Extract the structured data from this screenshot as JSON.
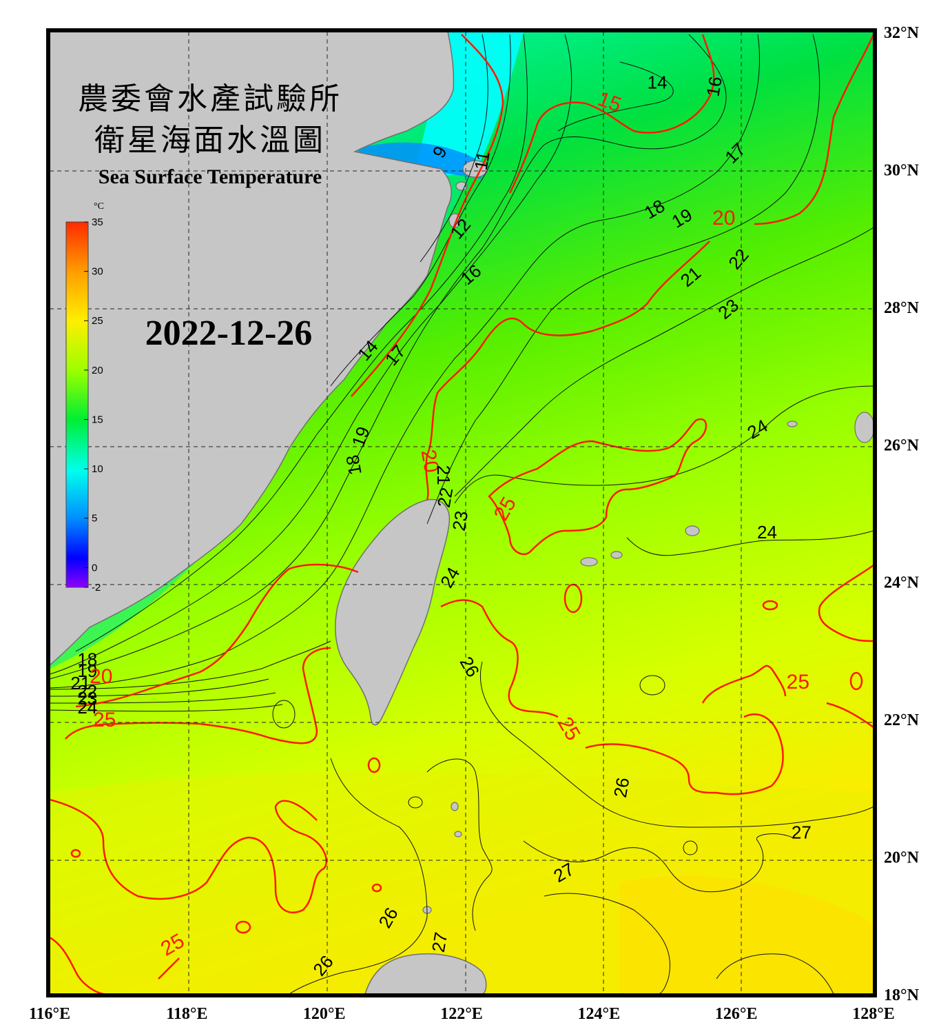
{
  "title_line1": "農委會水產試驗所",
  "title_line2": "衛星海面水溫圖",
  "subtitle": "Sea Surface Temperature",
  "date": "2022-12-26",
  "colorbar": {
    "unit": "°C",
    "ticks": [
      "35",
      "30",
      "25",
      "20",
      "15",
      "10",
      "5",
      "0",
      "-2"
    ],
    "colors": [
      "#ff2a00",
      "#ffa000",
      "#ffee00",
      "#99ff00",
      "#00ee33",
      "#00ffee",
      "#0090ff",
      "#0000ff",
      "#9000ff"
    ]
  },
  "axes": {
    "lon_labels": [
      "116°E",
      "118°E",
      "120°E",
      "122°E",
      "124°E",
      "126°E",
      "128°E"
    ],
    "lat_labels": [
      "32°N",
      "30°N",
      "28°N",
      "26°N",
      "24°N",
      "22°N",
      "20°N",
      "18°N"
    ]
  },
  "contour_labels": [
    {
      "text": "14",
      "lon": 124.85,
      "lat": 31.24,
      "color": "black",
      "rot": 0
    },
    {
      "text": "15",
      "lon": 124.15,
      "lat": 30.96,
      "color": "red",
      "rot": 20
    },
    {
      "text": "16",
      "lon": 125.7,
      "lat": 31.2,
      "color": "black",
      "rot": -80
    },
    {
      "text": "17",
      "lon": 126.0,
      "lat": 30.22,
      "color": "black",
      "rot": -45
    },
    {
      "text": "18",
      "lon": 124.82,
      "lat": 29.4,
      "color": "black",
      "rot": -30
    },
    {
      "text": "19",
      "lon": 125.22,
      "lat": 29.27,
      "color": "black",
      "rot": -30
    },
    {
      "text": "20",
      "lon": 125.82,
      "lat": 29.27,
      "color": "red",
      "rot": 0
    },
    {
      "text": "21",
      "lon": 125.35,
      "lat": 28.42,
      "color": "black",
      "rot": -40
    },
    {
      "text": "22",
      "lon": 126.05,
      "lat": 28.68,
      "color": "black",
      "rot": -50
    },
    {
      "text": "23",
      "lon": 125.9,
      "lat": 27.95,
      "color": "black",
      "rot": -40
    },
    {
      "text": "24",
      "lon": 126.32,
      "lat": 26.2,
      "color": "black",
      "rot": -30
    },
    {
      "text": "24",
      "lon": 126.45,
      "lat": 24.7,
      "color": "black",
      "rot": 0
    },
    {
      "text": "9",
      "lon": 121.7,
      "lat": 30.24,
      "color": "black",
      "rot": -60
    },
    {
      "text": "11",
      "lon": 122.32,
      "lat": 30.12,
      "color": "black",
      "rot": -80
    },
    {
      "text": "12",
      "lon": 122.0,
      "lat": 29.12,
      "color": "black",
      "rot": -50
    },
    {
      "text": "16",
      "lon": 122.15,
      "lat": 28.45,
      "color": "black",
      "rot": -40
    },
    {
      "text": "14",
      "lon": 120.65,
      "lat": 27.35,
      "color": "black",
      "rot": -50
    },
    {
      "text": "17",
      "lon": 121.05,
      "lat": 27.28,
      "color": "black",
      "rot": -50
    },
    {
      "text": "19",
      "lon": 120.55,
      "lat": 26.1,
      "color": "black",
      "rot": -70
    },
    {
      "text": "18",
      "lon": 120.45,
      "lat": 25.7,
      "color": "black",
      "rot": -100
    },
    {
      "text": "20",
      "lon": 121.52,
      "lat": 25.75,
      "color": "red",
      "rot": 80
    },
    {
      "text": "21",
      "lon": 121.72,
      "lat": 25.55,
      "color": "black",
      "rot": 90
    },
    {
      "text": "22",
      "lon": 121.78,
      "lat": 25.22,
      "color": "black",
      "rot": -80
    },
    {
      "text": "23",
      "lon": 122.0,
      "lat": 24.88,
      "color": "black",
      "rot": -80
    },
    {
      "text": "24",
      "lon": 121.85,
      "lat": 24.05,
      "color": "black",
      "rot": -60
    },
    {
      "text": "25",
      "lon": 122.65,
      "lat": 25.05,
      "color": "red",
      "rot": -60
    },
    {
      "text": "25",
      "lon": 116.8,
      "lat": 21.97,
      "color": "red",
      "rot": 0
    },
    {
      "text": "26",
      "lon": 122.1,
      "lat": 22.75,
      "color": "black",
      "rot": 60
    },
    {
      "text": "25",
      "lon": 123.55,
      "lat": 21.85,
      "color": "red",
      "rot": 60
    },
    {
      "text": "25",
      "lon": 126.9,
      "lat": 22.52,
      "color": "red",
      "rot": 0
    },
    {
      "text": "26",
      "lon": 124.35,
      "lat": 21.0,
      "color": "black",
      "rot": -80
    },
    {
      "text": "27",
      "lon": 126.95,
      "lat": 20.33,
      "color": "black",
      "rot": 0
    },
    {
      "text": "27",
      "lon": 123.5,
      "lat": 19.75,
      "color": "black",
      "rot": -30
    },
    {
      "text": "26",
      "lon": 120.95,
      "lat": 19.1,
      "color": "black",
      "rot": -60
    },
    {
      "text": "27",
      "lon": 121.7,
      "lat": 18.75,
      "color": "black",
      "rot": -80
    },
    {
      "text": "26",
      "lon": 120.0,
      "lat": 18.4,
      "color": "black",
      "rot": -50
    },
    {
      "text": "25",
      "lon": 117.8,
      "lat": 18.7,
      "color": "red",
      "rot": -30
    },
    {
      "text": "18",
      "lon": 116.55,
      "lat": 22.85,
      "color": "black",
      "rot": 0
    },
    {
      "text": "19",
      "lon": 116.55,
      "lat": 22.68,
      "color": "black",
      "rot": 0
    },
    {
      "text": "20",
      "lon": 116.75,
      "lat": 22.6,
      "color": "red",
      "rot": 0
    },
    {
      "text": "21",
      "lon": 116.45,
      "lat": 22.5,
      "color": "black",
      "rot": 0
    },
    {
      "text": "22",
      "lon": 116.55,
      "lat": 22.38,
      "color": "black",
      "rot": 0
    },
    {
      "text": "23",
      "lon": 116.55,
      "lat": 22.28,
      "color": "black",
      "rot": 0
    },
    {
      "text": "24",
      "lon": 116.55,
      "lat": 22.15,
      "color": "black",
      "rot": 0
    }
  ]
}
